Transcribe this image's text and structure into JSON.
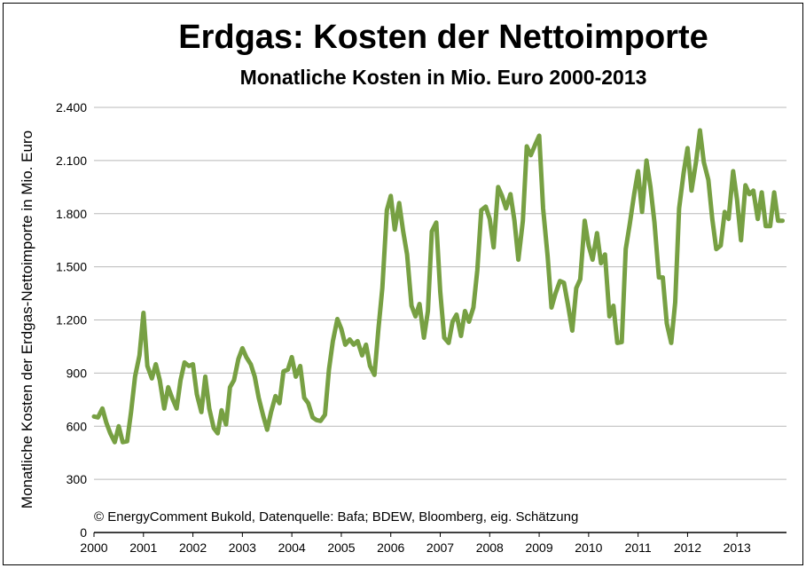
{
  "chart_data": {
    "type": "line",
    "title": "Erdgas: Kosten der Nettoimporte",
    "subtitle": "Monatliche Kosten in Mio. Euro 2000-2013",
    "ylabel": "Monatliche Kosten der Erdgas-Nettoimporte in Mio. Euro",
    "xlabel": "",
    "annotation": "© EnergyComment Bukold, Datenquelle: Bafa; BDEW, Bloomberg, eig. Schätzung",
    "ylim": [
      0,
      2400
    ],
    "xlim": [
      2000,
      2014
    ],
    "grid": true,
    "legend": "none",
    "y_ticks": [
      {
        "value": 0,
        "label": "0"
      },
      {
        "value": 300,
        "label": "300"
      },
      {
        "value": 600,
        "label": "600"
      },
      {
        "value": 900,
        "label": "900"
      },
      {
        "value": 1200,
        "label": "1.200"
      },
      {
        "value": 1500,
        "label": "1.500"
      },
      {
        "value": 1800,
        "label": "1.800"
      },
      {
        "value": 2100,
        "label": "2.100"
      },
      {
        "value": 2400,
        "label": "2.400"
      }
    ],
    "x_ticks": [
      {
        "value": 2000,
        "label": "2000"
      },
      {
        "value": 2001,
        "label": "2001"
      },
      {
        "value": 2002,
        "label": "2002"
      },
      {
        "value": 2003,
        "label": "2003"
      },
      {
        "value": 2004,
        "label": "2004"
      },
      {
        "value": 2005,
        "label": "2005"
      },
      {
        "value": 2006,
        "label": "2006"
      },
      {
        "value": 2007,
        "label": "2007"
      },
      {
        "value": 2008,
        "label": "2008"
      },
      {
        "value": 2009,
        "label": "2009"
      },
      {
        "value": 2010,
        "label": "2010"
      },
      {
        "value": 2011,
        "label": "2011"
      },
      {
        "value": 2012,
        "label": "2012"
      },
      {
        "value": 2013,
        "label": "2013"
      }
    ],
    "line_color": "#77a043",
    "series": [
      {
        "values": [
          [
            2000.0,
            655
          ],
          [
            2000.08,
            650
          ],
          [
            2000.17,
            700
          ],
          [
            2000.25,
            620
          ],
          [
            2000.33,
            560
          ],
          [
            2000.42,
            510
          ],
          [
            2000.5,
            600
          ],
          [
            2000.58,
            510
          ],
          [
            2000.67,
            515
          ],
          [
            2000.75,
            680
          ],
          [
            2000.83,
            880
          ],
          [
            2000.92,
            1000
          ],
          [
            2001.0,
            1240
          ],
          [
            2001.08,
            940
          ],
          [
            2001.17,
            870
          ],
          [
            2001.25,
            950
          ],
          [
            2001.33,
            860
          ],
          [
            2001.42,
            700
          ],
          [
            2001.5,
            820
          ],
          [
            2001.58,
            760
          ],
          [
            2001.67,
            700
          ],
          [
            2001.75,
            860
          ],
          [
            2001.83,
            960
          ],
          [
            2001.92,
            940
          ],
          [
            2002.0,
            950
          ],
          [
            2002.08,
            780
          ],
          [
            2002.17,
            680
          ],
          [
            2002.25,
            880
          ],
          [
            2002.33,
            700
          ],
          [
            2002.42,
            590
          ],
          [
            2002.5,
            560
          ],
          [
            2002.58,
            690
          ],
          [
            2002.67,
            610
          ],
          [
            2002.75,
            820
          ],
          [
            2002.83,
            860
          ],
          [
            2002.92,
            980
          ],
          [
            2003.0,
            1040
          ],
          [
            2003.08,
            990
          ],
          [
            2003.17,
            950
          ],
          [
            2003.25,
            880
          ],
          [
            2003.33,
            760
          ],
          [
            2003.42,
            660
          ],
          [
            2003.5,
            580
          ],
          [
            2003.58,
            680
          ],
          [
            2003.67,
            770
          ],
          [
            2003.75,
            730
          ],
          [
            2003.83,
            910
          ],
          [
            2003.92,
            920
          ],
          [
            2004.0,
            990
          ],
          [
            2004.08,
            880
          ],
          [
            2004.17,
            940
          ],
          [
            2004.25,
            760
          ],
          [
            2004.33,
            730
          ],
          [
            2004.42,
            650
          ],
          [
            2004.5,
            635
          ],
          [
            2004.58,
            630
          ],
          [
            2004.67,
            665
          ],
          [
            2004.75,
            920
          ],
          [
            2004.83,
            1080
          ],
          [
            2004.92,
            1205
          ],
          [
            2005.0,
            1150
          ],
          [
            2005.08,
            1060
          ],
          [
            2005.17,
            1090
          ],
          [
            2005.25,
            1060
          ],
          [
            2005.33,
            1080
          ],
          [
            2005.42,
            1000
          ],
          [
            2005.5,
            1060
          ],
          [
            2005.58,
            940
          ],
          [
            2005.67,
            890
          ],
          [
            2005.75,
            1150
          ],
          [
            2005.83,
            1380
          ],
          [
            2005.92,
            1820
          ],
          [
            2006.0,
            1900
          ],
          [
            2006.08,
            1710
          ],
          [
            2006.17,
            1860
          ],
          [
            2006.25,
            1700
          ],
          [
            2006.33,
            1570
          ],
          [
            2006.42,
            1280
          ],
          [
            2006.5,
            1220
          ],
          [
            2006.58,
            1290
          ],
          [
            2006.67,
            1100
          ],
          [
            2006.75,
            1250
          ],
          [
            2006.83,
            1700
          ],
          [
            2006.92,
            1750
          ],
          [
            2007.0,
            1360
          ],
          [
            2007.08,
            1100
          ],
          [
            2007.17,
            1070
          ],
          [
            2007.25,
            1190
          ],
          [
            2007.33,
            1230
          ],
          [
            2007.42,
            1110
          ],
          [
            2007.5,
            1250
          ],
          [
            2007.58,
            1190
          ],
          [
            2007.67,
            1270
          ],
          [
            2007.75,
            1480
          ],
          [
            2007.83,
            1820
          ],
          [
            2007.92,
            1840
          ],
          [
            2008.0,
            1770
          ],
          [
            2008.08,
            1610
          ],
          [
            2008.17,
            1950
          ],
          [
            2008.25,
            1900
          ],
          [
            2008.33,
            1830
          ],
          [
            2008.42,
            1910
          ],
          [
            2008.5,
            1760
          ],
          [
            2008.58,
            1540
          ],
          [
            2008.67,
            1760
          ],
          [
            2008.75,
            2180
          ],
          [
            2008.83,
            2130
          ],
          [
            2008.92,
            2190
          ],
          [
            2009.0,
            2240
          ],
          [
            2009.08,
            1830
          ],
          [
            2009.17,
            1560
          ],
          [
            2009.25,
            1270
          ],
          [
            2009.33,
            1350
          ],
          [
            2009.42,
            1420
          ],
          [
            2009.5,
            1410
          ],
          [
            2009.58,
            1290
          ],
          [
            2009.67,
            1140
          ],
          [
            2009.75,
            1380
          ],
          [
            2009.83,
            1430
          ],
          [
            2009.92,
            1760
          ],
          [
            2010.0,
            1620
          ],
          [
            2010.08,
            1540
          ],
          [
            2010.17,
            1690
          ],
          [
            2010.25,
            1520
          ],
          [
            2010.33,
            1570
          ],
          [
            2010.42,
            1220
          ],
          [
            2010.5,
            1280
          ],
          [
            2010.58,
            1070
          ],
          [
            2010.67,
            1075
          ],
          [
            2010.75,
            1600
          ],
          [
            2010.83,
            1740
          ],
          [
            2010.92,
            1910
          ],
          [
            2011.0,
            2040
          ],
          [
            2011.08,
            1810
          ],
          [
            2011.17,
            2100
          ],
          [
            2011.25,
            1950
          ],
          [
            2011.33,
            1750
          ],
          [
            2011.42,
            1440
          ],
          [
            2011.5,
            1440
          ],
          [
            2011.58,
            1180
          ],
          [
            2011.67,
            1070
          ],
          [
            2011.75,
            1300
          ],
          [
            2011.83,
            1830
          ],
          [
            2011.92,
            2030
          ],
          [
            2012.0,
            2170
          ],
          [
            2012.08,
            1930
          ],
          [
            2012.17,
            2090
          ],
          [
            2012.25,
            2270
          ],
          [
            2012.33,
            2090
          ],
          [
            2012.42,
            1990
          ],
          [
            2012.5,
            1770
          ],
          [
            2012.58,
            1600
          ],
          [
            2012.67,
            1620
          ],
          [
            2012.75,
            1810
          ],
          [
            2012.83,
            1770
          ],
          [
            2012.92,
            2040
          ],
          [
            2013.0,
            1880
          ],
          [
            2013.08,
            1650
          ],
          [
            2013.17,
            1960
          ],
          [
            2013.25,
            1910
          ],
          [
            2013.33,
            1930
          ],
          [
            2013.42,
            1770
          ],
          [
            2013.5,
            1920
          ],
          [
            2013.58,
            1730
          ],
          [
            2013.67,
            1730
          ],
          [
            2013.75,
            1920
          ],
          [
            2013.83,
            1760
          ],
          [
            2013.92,
            1760
          ]
        ]
      }
    ]
  }
}
